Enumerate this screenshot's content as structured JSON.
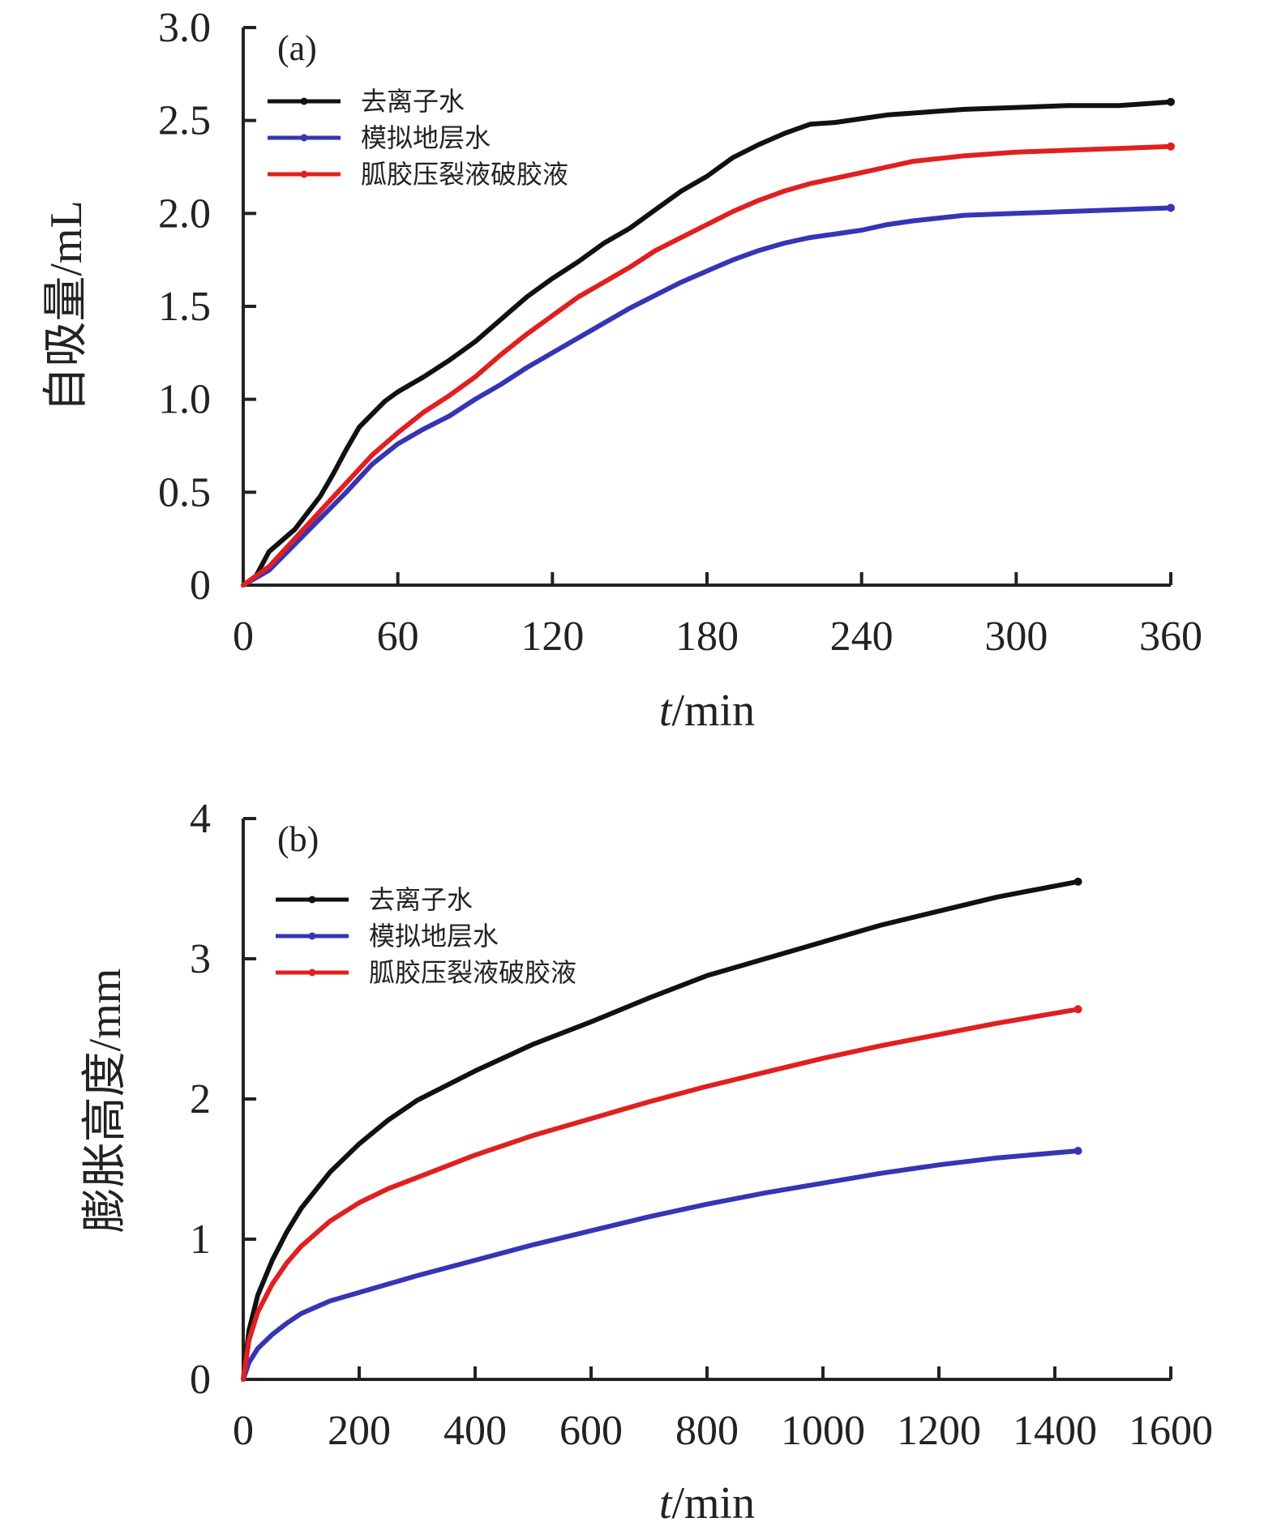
{
  "chart_data": [
    {
      "type": "line",
      "panel_label": "(a)",
      "xlabel_italic": "t",
      "xlabel_rest": "/min",
      "ylabel": "自吸量/mL",
      "xlim": [
        0,
        360
      ],
      "ylim": [
        0,
        3.0
      ],
      "x_ticks": [
        "0",
        "60",
        "120",
        "180",
        "240",
        "300",
        "360"
      ],
      "y_ticks": [
        "0",
        "0.5",
        "1.0",
        "1.5",
        "2.0",
        "2.5",
        "3.0"
      ],
      "legend_position": "top-left",
      "series": [
        {
          "name": "去离子水",
          "color": "#111111",
          "points": [
            [
              0,
              0
            ],
            [
              5,
              0.05
            ],
            [
              10,
              0.18
            ],
            [
              20,
              0.3
            ],
            [
              30,
              0.48
            ],
            [
              35,
              0.6
            ],
            [
              40,
              0.73
            ],
            [
              45,
              0.85
            ],
            [
              50,
              0.92
            ],
            [
              55,
              0.99
            ],
            [
              60,
              1.04
            ],
            [
              70,
              1.12
            ],
            [
              80,
              1.21
            ],
            [
              90,
              1.31
            ],
            [
              100,
              1.43
            ],
            [
              110,
              1.55
            ],
            [
              120,
              1.65
            ],
            [
              130,
              1.74
            ],
            [
              140,
              1.84
            ],
            [
              150,
              1.92
            ],
            [
              160,
              2.02
            ],
            [
              170,
              2.12
            ],
            [
              180,
              2.2
            ],
            [
              190,
              2.3
            ],
            [
              200,
              2.37
            ],
            [
              210,
              2.43
            ],
            [
              220,
              2.48
            ],
            [
              230,
              2.49
            ],
            [
              240,
              2.51
            ],
            [
              250,
              2.53
            ],
            [
              260,
              2.54
            ],
            [
              280,
              2.56
            ],
            [
              300,
              2.57
            ],
            [
              320,
              2.58
            ],
            [
              340,
              2.58
            ],
            [
              360,
              2.6
            ]
          ]
        },
        {
          "name": "模拟地层水",
          "color": "#3535b5",
          "points": [
            [
              0,
              0
            ],
            [
              10,
              0.08
            ],
            [
              20,
              0.22
            ],
            [
              30,
              0.36
            ],
            [
              40,
              0.5
            ],
            [
              50,
              0.65
            ],
            [
              60,
              0.76
            ],
            [
              70,
              0.84
            ],
            [
              80,
              0.91
            ],
            [
              90,
              1.0
            ],
            [
              100,
              1.08
            ],
            [
              110,
              1.17
            ],
            [
              120,
              1.25
            ],
            [
              130,
              1.33
            ],
            [
              140,
              1.41
            ],
            [
              150,
              1.49
            ],
            [
              160,
              1.56
            ],
            [
              170,
              1.63
            ],
            [
              180,
              1.69
            ],
            [
              190,
              1.75
            ],
            [
              200,
              1.8
            ],
            [
              210,
              1.84
            ],
            [
              220,
              1.87
            ],
            [
              230,
              1.89
            ],
            [
              240,
              1.91
            ],
            [
              250,
              1.94
            ],
            [
              260,
              1.96
            ],
            [
              280,
              1.99
            ],
            [
              300,
              2.0
            ],
            [
              320,
              2.01
            ],
            [
              340,
              2.02
            ],
            [
              360,
              2.03
            ]
          ]
        },
        {
          "name": "胍胶压裂液破胶液",
          "color": "#e02020",
          "points": [
            [
              0,
              0
            ],
            [
              10,
              0.1
            ],
            [
              20,
              0.25
            ],
            [
              30,
              0.4
            ],
            [
              40,
              0.55
            ],
            [
              50,
              0.7
            ],
            [
              60,
              0.82
            ],
            [
              70,
              0.93
            ],
            [
              80,
              1.02
            ],
            [
              90,
              1.12
            ],
            [
              100,
              1.24
            ],
            [
              110,
              1.35
            ],
            [
              120,
              1.45
            ],
            [
              130,
              1.55
            ],
            [
              140,
              1.63
            ],
            [
              150,
              1.71
            ],
            [
              160,
              1.8
            ],
            [
              170,
              1.87
            ],
            [
              180,
              1.94
            ],
            [
              190,
              2.01
            ],
            [
              200,
              2.07
            ],
            [
              210,
              2.12
            ],
            [
              220,
              2.16
            ],
            [
              230,
              2.19
            ],
            [
              240,
              2.22
            ],
            [
              250,
              2.25
            ],
            [
              260,
              2.28
            ],
            [
              280,
              2.31
            ],
            [
              300,
              2.33
            ],
            [
              320,
              2.34
            ],
            [
              340,
              2.35
            ],
            [
              360,
              2.36
            ]
          ]
        }
      ]
    },
    {
      "type": "line",
      "panel_label": "(b)",
      "xlabel_italic": "t",
      "xlabel_rest": "/min",
      "ylabel": "膨胀高度/mm",
      "xlim": [
        0,
        1600
      ],
      "ylim": [
        0,
        4
      ],
      "x_ticks": [
        "0",
        "200",
        "400",
        "600",
        "800",
        "1000",
        "1200",
        "1400",
        "1600"
      ],
      "y_ticks": [
        "0",
        "1",
        "2",
        "3",
        "4"
      ],
      "legend_position": "top-left",
      "series": [
        {
          "name": "去离子水",
          "color": "#111111",
          "points": [
            [
              0,
              0
            ],
            [
              10,
              0.35
            ],
            [
              25,
              0.6
            ],
            [
              50,
              0.85
            ],
            [
              75,
              1.05
            ],
            [
              100,
              1.22
            ],
            [
              150,
              1.48
            ],
            [
              200,
              1.68
            ],
            [
              250,
              1.85
            ],
            [
              300,
              1.99
            ],
            [
              400,
              2.2
            ],
            [
              500,
              2.39
            ],
            [
              600,
              2.55
            ],
            [
              700,
              2.72
            ],
            [
              800,
              2.88
            ],
            [
              900,
              3.0
            ],
            [
              1000,
              3.12
            ],
            [
              1100,
              3.24
            ],
            [
              1200,
              3.34
            ],
            [
              1300,
              3.44
            ],
            [
              1440,
              3.55
            ]
          ]
        },
        {
          "name": "模拟地层水",
          "color": "#3535b5",
          "points": [
            [
              0,
              0
            ],
            [
              10,
              0.12
            ],
            [
              25,
              0.22
            ],
            [
              50,
              0.32
            ],
            [
              75,
              0.4
            ],
            [
              100,
              0.47
            ],
            [
              150,
              0.56
            ],
            [
              200,
              0.62
            ],
            [
              250,
              0.68
            ],
            [
              300,
              0.74
            ],
            [
              400,
              0.85
            ],
            [
              500,
              0.96
            ],
            [
              600,
              1.06
            ],
            [
              700,
              1.16
            ],
            [
              800,
              1.25
            ],
            [
              900,
              1.33
            ],
            [
              1000,
              1.4
            ],
            [
              1100,
              1.47
            ],
            [
              1200,
              1.53
            ],
            [
              1300,
              1.58
            ],
            [
              1440,
              1.63
            ]
          ]
        },
        {
          "name": "胍胶压裂液破胶液",
          "color": "#e02020",
          "points": [
            [
              0,
              0
            ],
            [
              10,
              0.28
            ],
            [
              25,
              0.48
            ],
            [
              50,
              0.68
            ],
            [
              75,
              0.83
            ],
            [
              100,
              0.95
            ],
            [
              150,
              1.13
            ],
            [
              200,
              1.26
            ],
            [
              250,
              1.36
            ],
            [
              300,
              1.44
            ],
            [
              400,
              1.6
            ],
            [
              500,
              1.74
            ],
            [
              600,
              1.86
            ],
            [
              700,
              1.98
            ],
            [
              800,
              2.09
            ],
            [
              900,
              2.19
            ],
            [
              1000,
              2.29
            ],
            [
              1100,
              2.38
            ],
            [
              1200,
              2.46
            ],
            [
              1300,
              2.54
            ],
            [
              1440,
              2.64
            ]
          ]
        }
      ]
    }
  ]
}
